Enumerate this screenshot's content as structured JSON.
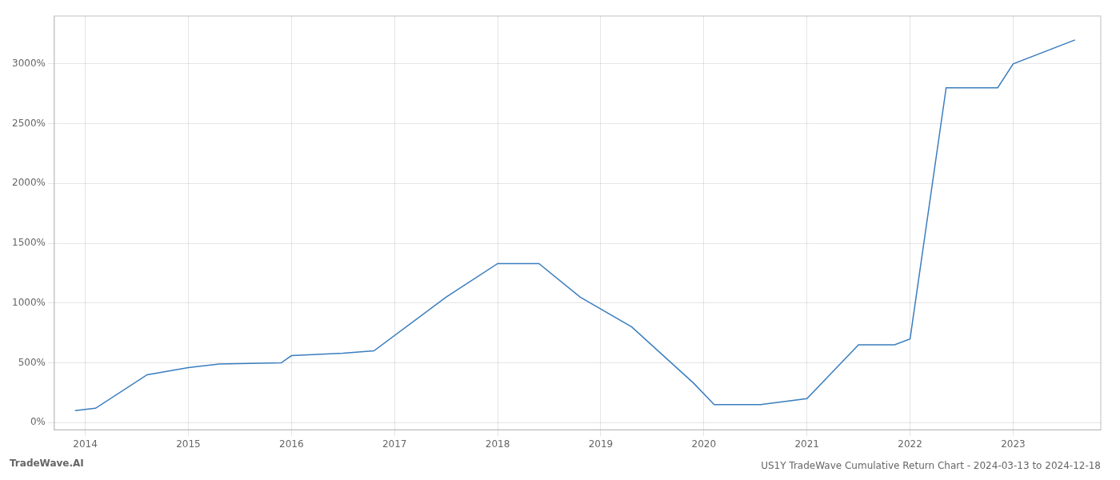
{
  "chart_data": {
    "type": "line",
    "title": "US1Y TradeWave Cumulative Return Chart - 2024-03-13 to 2024-12-18",
    "annotations": [
      "TradeWave.AI"
    ],
    "x": [
      2013.9,
      2014.1,
      2014.6,
      2015.0,
      2015.3,
      2015.9,
      2016.0,
      2016.5,
      2016.8,
      2017.5,
      2018.0,
      2018.4,
      2018.8,
      2019.3,
      2019.9,
      2020.1,
      2020.55,
      2021.0,
      2021.5,
      2021.85,
      2022.0,
      2022.35,
      2022.85,
      2023.0,
      2023.6
    ],
    "values": [
      100,
      120,
      400,
      460,
      490,
      500,
      560,
      580,
      600,
      1050,
      1330,
      1330,
      1050,
      800,
      330,
      150,
      150,
      200,
      650,
      650,
      700,
      2800,
      2800,
      3000,
      3200
    ],
    "color": "#3a7ebf",
    "xlim": [
      2013.7,
      2023.85
    ],
    "xticks": [
      2014,
      2015,
      2016,
      2017,
      2018,
      2019,
      2020,
      2021,
      2022,
      2023
    ],
    "ylim": [
      -60,
      3400
    ],
    "yticks": [
      {
        "value": 0,
        "label": "0%"
      },
      {
        "value": 500,
        "label": "500%"
      },
      {
        "value": 1000,
        "label": "1000%"
      },
      {
        "value": 1500,
        "label": "1500%"
      },
      {
        "value": 2000,
        "label": "2000%"
      },
      {
        "value": 2500,
        "label": "2500%"
      },
      {
        "value": 3000,
        "label": "3000%"
      }
    ],
    "grid": true
  }
}
